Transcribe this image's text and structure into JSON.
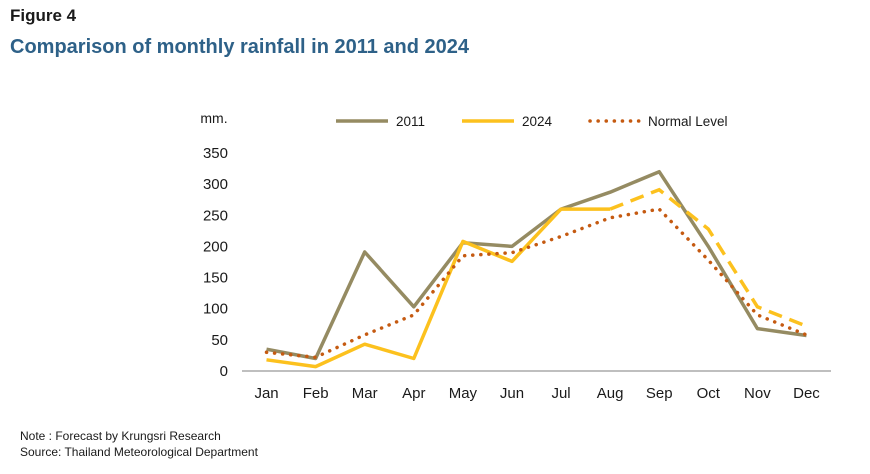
{
  "figure_label": "Figure 4",
  "title": "Comparison of monthly rainfall in 2011 and 2024",
  "notes": {
    "note": "Note : Forecast by Krungsri Research",
    "source": "Source: Thailand Meteorological Department"
  },
  "chart_data": {
    "type": "line",
    "title": "Comparison of monthly rainfall in 2011 and 2024",
    "ylabel": "mm.",
    "xlabel": "",
    "categories": [
      "Jan",
      "Feb",
      "Mar",
      "Apr",
      "May",
      "Jun",
      "Jul",
      "Aug",
      "Sep",
      "Oct",
      "Nov",
      "Dec"
    ],
    "ylim": [
      0,
      350
    ],
    "yticks": [
      0,
      50,
      100,
      150,
      200,
      250,
      300,
      350
    ],
    "grid": false,
    "legend_position": "top",
    "series": [
      {
        "name": "2011",
        "color": "#958b62",
        "style": "solid",
        "values": [
          35,
          20,
          191,
          103,
          206,
          200,
          260,
          287,
          320,
          200,
          68,
          57
        ]
      },
      {
        "name": "2024",
        "color": "#fcc11e",
        "style": "solid-then-dashed",
        "forecast_from_index": 7,
        "values": [
          18,
          7,
          43,
          20,
          208,
          176,
          260,
          260,
          291,
          228,
          103,
          72
        ]
      },
      {
        "name": "Normal Level",
        "color": "#c55a11",
        "style": "dotted",
        "values": [
          30,
          22,
          58,
          90,
          185,
          190,
          216,
          246,
          260,
          178,
          90,
          58
        ]
      }
    ]
  }
}
